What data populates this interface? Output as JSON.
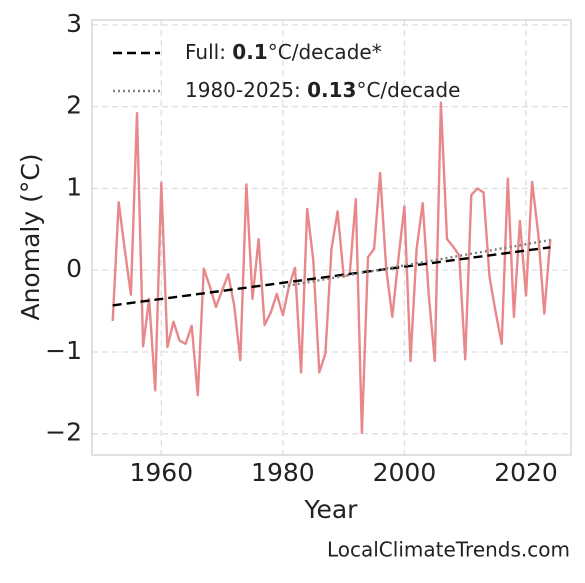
{
  "chart_data": {
    "type": "line",
    "xlabel": "Year",
    "ylabel": "Anomaly (°C)",
    "source": "LocalClimateTrends.com",
    "x": [
      1952,
      1953,
      1954,
      1955,
      1956,
      1957,
      1958,
      1959,
      1960,
      1961,
      1962,
      1963,
      1964,
      1965,
      1966,
      1967,
      1968,
      1969,
      1970,
      1971,
      1972,
      1973,
      1974,
      1975,
      1976,
      1977,
      1978,
      1979,
      1980,
      1981,
      1982,
      1983,
      1984,
      1985,
      1986,
      1987,
      1988,
      1989,
      1990,
      1991,
      1992,
      1993,
      1994,
      1995,
      1996,
      1997,
      1998,
      1999,
      2000,
      2001,
      2002,
      2003,
      2004,
      2005,
      2006,
      2007,
      2008,
      2009,
      2010,
      2011,
      2012,
      2013,
      2014,
      2015,
      2016,
      2017,
      2018,
      2019,
      2020,
      2021,
      2022,
      2023,
      2024
    ],
    "series": [
      {
        "color": "#e8888a",
        "values": [
          -0.62,
          0.83,
          0.25,
          -0.3,
          1.92,
          -0.93,
          -0.35,
          -1.47,
          1.07,
          -0.94,
          -0.63,
          -0.86,
          -0.9,
          -0.68,
          -1.53,
          0.02,
          -0.2,
          -0.45,
          -0.25,
          -0.05,
          -0.43,
          -1.1,
          1.05,
          -0.35,
          0.38,
          -0.67,
          -0.52,
          -0.29,
          -0.55,
          -0.2,
          0.03,
          -1.25,
          0.75,
          0.12,
          -1.25,
          -1.02,
          0.26,
          0.72,
          -0.08,
          -0.05,
          0.87,
          -1.99,
          0.16,
          0.26,
          1.19,
          0.02,
          -0.57,
          0.14,
          0.78,
          -1.11,
          0.26,
          0.82,
          -0.31,
          -1.11,
          2.05,
          0.38,
          0.29,
          0.18,
          -1.09,
          0.92,
          1.0,
          0.95,
          -0.08,
          -0.51,
          -0.9,
          1.12,
          -0.57,
          0.6,
          -0.31,
          1.08,
          0.45,
          -0.53,
          0.38
        ]
      }
    ],
    "trends": [
      {
        "name": [
          "Full: ",
          "0.1",
          "°C/decade*"
        ],
        "color": "#000000",
        "dash": "9,5",
        "x": [
          1952,
          2024
        ],
        "values": [
          -0.43,
          0.28
        ]
      },
      {
        "name": [
          "1980-2025: ",
          "0.13",
          "°C/decade"
        ],
        "color": "#808080",
        "dash": "2,3",
        "x": [
          1980,
          2024
        ],
        "values": [
          -0.2,
          0.37
        ]
      }
    ],
    "xlim": [
      1948.6,
      2027.4
    ],
    "xticks": [
      1960,
      1980,
      2000,
      2020
    ],
    "ylim": [
      -2.26,
      3.06
    ],
    "yticks": [
      {
        "value": -2,
        "label": "−2"
      },
      {
        "value": -1,
        "label": "−1"
      },
      0,
      1,
      2,
      3
    ],
    "grid": true
  }
}
